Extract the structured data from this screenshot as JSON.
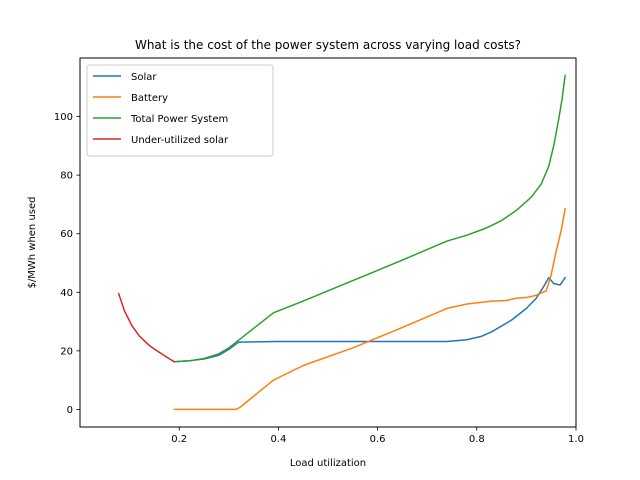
{
  "chart_data": {
    "type": "line",
    "title": "What is the cost of the power system across varying load costs?",
    "xlabel": "Load utilization",
    "ylabel": "$/MWh when used",
    "xlim": [
      0.0,
      1.0
    ],
    "ylim": [
      -6,
      120
    ],
    "xticks": [
      0.2,
      0.4,
      0.6,
      0.8,
      1.0
    ],
    "xtick_labels": [
      "0.2",
      "0.4",
      "0.6",
      "0.8",
      "1.0"
    ],
    "yticks": [
      0,
      20,
      40,
      60,
      80,
      100
    ],
    "ytick_labels": [
      "0",
      "20",
      "40",
      "60",
      "80",
      "100"
    ],
    "grid": false,
    "legend_position": "top-left",
    "series": [
      {
        "name": "Solar",
        "color": "#1f77b4",
        "points": [
          [
            0.19,
            16.3
          ],
          [
            0.22,
            16.6
          ],
          [
            0.25,
            17.2
          ],
          [
            0.28,
            18.5
          ],
          [
            0.3,
            20.5
          ],
          [
            0.32,
            23.0
          ],
          [
            0.4,
            23.2
          ],
          [
            0.6,
            23.2
          ],
          [
            0.74,
            23.2
          ],
          [
            0.78,
            23.8
          ],
          [
            0.81,
            25.0
          ],
          [
            0.83,
            26.5
          ],
          [
            0.85,
            28.5
          ],
          [
            0.87,
            30.5
          ],
          [
            0.9,
            34.5
          ],
          [
            0.92,
            38.0
          ],
          [
            0.935,
            42.0
          ],
          [
            0.945,
            45.0
          ],
          [
            0.955,
            43.0
          ],
          [
            0.968,
            42.5
          ],
          [
            0.978,
            45.0
          ]
        ]
      },
      {
        "name": "Battery",
        "color": "#ff7f0e",
        "points": [
          [
            0.19,
            0.0
          ],
          [
            0.315,
            0.0
          ],
          [
            0.325,
            1.0
          ],
          [
            0.35,
            4.5
          ],
          [
            0.39,
            10.0
          ],
          [
            0.45,
            15.0
          ],
          [
            0.55,
            21.0
          ],
          [
            0.65,
            28.0
          ],
          [
            0.74,
            34.5
          ],
          [
            0.78,
            36.0
          ],
          [
            0.83,
            37.0
          ],
          [
            0.86,
            37.2
          ],
          [
            0.88,
            38.0
          ],
          [
            0.9,
            38.2
          ],
          [
            0.92,
            39.0
          ],
          [
            0.94,
            40.5
          ],
          [
            0.95,
            46.0
          ],
          [
            0.96,
            54.0
          ],
          [
            0.97,
            61.0
          ],
          [
            0.978,
            68.5
          ]
        ]
      },
      {
        "name": "Total Power System",
        "color": "#2ca02c",
        "points": [
          [
            0.19,
            16.3
          ],
          [
            0.22,
            16.6
          ],
          [
            0.25,
            17.4
          ],
          [
            0.28,
            19.0
          ],
          [
            0.3,
            21.0
          ],
          [
            0.33,
            25.0
          ],
          [
            0.39,
            33.0
          ],
          [
            0.45,
            37.0
          ],
          [
            0.55,
            44.0
          ],
          [
            0.65,
            51.0
          ],
          [
            0.74,
            57.5
          ],
          [
            0.78,
            59.5
          ],
          [
            0.82,
            62.0
          ],
          [
            0.85,
            64.5
          ],
          [
            0.88,
            68.0
          ],
          [
            0.91,
            72.5
          ],
          [
            0.93,
            77.0
          ],
          [
            0.945,
            83.0
          ],
          [
            0.955,
            90.0
          ],
          [
            0.965,
            99.0
          ],
          [
            0.972,
            106.0
          ],
          [
            0.978,
            114.0
          ]
        ]
      },
      {
        "name": "Under-utilized solar",
        "color": "#d62728",
        "points": [
          [
            0.078,
            39.5
          ],
          [
            0.09,
            33.5
          ],
          [
            0.105,
            28.5
          ],
          [
            0.12,
            25.0
          ],
          [
            0.14,
            21.8
          ],
          [
            0.16,
            19.5
          ],
          [
            0.18,
            17.3
          ],
          [
            0.19,
            16.3
          ]
        ]
      }
    ]
  }
}
